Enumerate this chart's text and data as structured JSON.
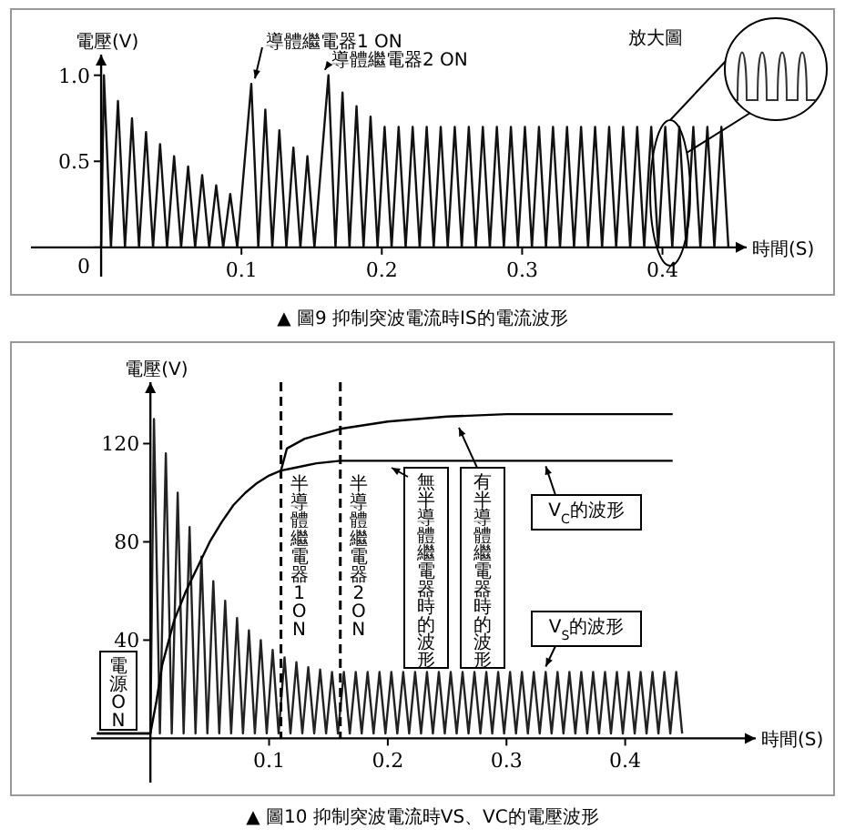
{
  "chart_data": [
    {
      "type": "line",
      "title": "▲ 圖9 抑制突波電流時IS的電流波形",
      "xlabel": "時間(S)",
      "ylabel": "電壓(V)",
      "xlim": [
        -0.05,
        0.46
      ],
      "ylim": [
        -0.17,
        1.12
      ],
      "xticks": [
        0.1,
        0.2,
        0.3,
        0.4
      ],
      "yticks": [
        0,
        0.5,
        {
          "value": 1,
          "label": "1.0"
        }
      ],
      "series": [
        {
          "color": "#111111",
          "x": [
            0,
            0.002,
            0.007,
            0.012,
            0.017,
            0.022,
            0.027,
            0.032,
            0.037,
            0.042,
            0.047,
            0.052,
            0.057,
            0.062,
            0.067,
            0.072,
            0.077,
            0.082,
            0.087,
            0.092,
            0.097,
            0.107,
            0.112,
            0.117,
            0.122,
            0.127,
            0.132,
            0.137,
            0.142,
            0.147,
            0.152,
            0.162,
            0.167,
            0.172,
            0.177,
            0.182,
            0.187,
            0.192,
            0.197,
            0.202,
            0.207,
            0.212,
            0.217,
            0.222,
            0.227,
            0.232,
            0.237,
            0.242,
            0.247,
            0.252,
            0.257,
            0.262,
            0.267,
            0.272,
            0.277,
            0.282,
            0.287,
            0.292,
            0.297,
            0.302,
            0.307,
            0.312,
            0.317,
            0.322,
            0.327,
            0.332,
            0.337,
            0.342,
            0.347,
            0.352,
            0.357,
            0.362,
            0.367,
            0.372,
            0.377,
            0.382,
            0.387,
            0.392,
            0.397,
            0.402,
            0.407,
            0.412,
            0.417,
            0.422,
            0.427,
            0.432,
            0.437,
            0.442,
            0.447
          ],
          "values": [
            0,
            1.0,
            0,
            0.85,
            0,
            0.75,
            0,
            0.67,
            0,
            0.6,
            0,
            0.53,
            0,
            0.47,
            0,
            0.42,
            0,
            0.36,
            0,
            0.31,
            0,
            0.95,
            0,
            0.8,
            0,
            0.68,
            0,
            0.58,
            0,
            0.53,
            0,
            1.0,
            0,
            0.9,
            0,
            0.82,
            0,
            0.76,
            0,
            0.7,
            0,
            0.7,
            0,
            0.7,
            0,
            0.7,
            0,
            0.7,
            0,
            0.7,
            0,
            0.7,
            0,
            0.7,
            0,
            0.7,
            0,
            0.7,
            0,
            0.7,
            0,
            0.7,
            0,
            0.7,
            0,
            0.7,
            0,
            0.7,
            0,
            0.7,
            0,
            0.7,
            0,
            0.7,
            0,
            0.7,
            0,
            0.7,
            0,
            0.7,
            0,
            0.7,
            0,
            0.7,
            0,
            0.7,
            0,
            0.7,
            0
          ]
        }
      ],
      "annotations": [
        {
          "text": "導體繼電器1 ON",
          "x": 0.107,
          "y": 0.95
        },
        {
          "text": "導體繼電器2 ON",
          "x": 0.162,
          "y": 1.0
        },
        "放大圖"
      ]
    },
    {
      "type": "line",
      "title": "▲ 圖10 抑制突波電流時VS、VC的電壓波形",
      "xlabel": "時間(S)",
      "ylabel": "電壓(V)",
      "xlim": [
        -0.05,
        0.51
      ],
      "ylim": [
        -18,
        145
      ],
      "xticks": [
        0.1,
        0.2,
        0.3,
        0.4
      ],
      "yticks": [
        40,
        80,
        120
      ],
      "series": [
        {
          "color": "#222222",
          "x": [
            -0.045,
            0,
            0.003,
            0.008,
            0.013,
            0.018,
            0.023,
            0.028,
            0.033,
            0.038,
            0.043,
            0.048,
            0.053,
            0.058,
            0.063,
            0.068,
            0.073,
            0.078,
            0.083,
            0.088,
            0.093,
            0.098,
            0.103,
            0.108,
            0.113,
            0.118,
            0.123,
            0.128,
            0.133,
            0.138,
            0.143,
            0.148,
            0.153,
            0.158,
            0.163,
            0.168,
            0.173,
            0.178,
            0.183,
            0.188,
            0.193,
            0.198,
            0.203,
            0.208,
            0.213,
            0.218,
            0.223,
            0.228,
            0.233,
            0.238,
            0.243,
            0.248,
            0.253,
            0.258,
            0.263,
            0.268,
            0.273,
            0.278,
            0.283,
            0.288,
            0.293,
            0.298,
            0.303,
            0.308,
            0.313,
            0.318,
            0.323,
            0.328,
            0.333,
            0.338,
            0.343,
            0.348,
            0.353,
            0.358,
            0.363,
            0.368,
            0.373,
            0.378,
            0.383,
            0.388,
            0.393,
            0.398,
            0.403,
            0.408,
            0.413,
            0.418,
            0.423,
            0.428,
            0.433,
            0.438,
            0.443,
            0.448
          ],
          "values": [
            2,
            2,
            130,
            2,
            116,
            2,
            100,
            2,
            86,
            2,
            74,
            2,
            64,
            2,
            56,
            2,
            49,
            2,
            44,
            2,
            40,
            2,
            36,
            2,
            33,
            2,
            31,
            2,
            29,
            2,
            28,
            2,
            27,
            2,
            27,
            2,
            27,
            2,
            27,
            2,
            27,
            2,
            27,
            2,
            27,
            2,
            27,
            2,
            27,
            2,
            27,
            2,
            27,
            2,
            27,
            2,
            27,
            2,
            27,
            2,
            27,
            2,
            27,
            2,
            27,
            2,
            27,
            2,
            27,
            2,
            27,
            2,
            27,
            2,
            27,
            2,
            27,
            2,
            27,
            2,
            27,
            2,
            27,
            2,
            27,
            2,
            27,
            2,
            27,
            2,
            27,
            2
          ]
        },
        {
          "color": "#000000",
          "x": [
            -0.045,
            0,
            0.005,
            0.01,
            0.02,
            0.03,
            0.04,
            0.05,
            0.06,
            0.07,
            0.08,
            0.09,
            0.1,
            0.11,
            0.12,
            0.14,
            0.16,
            0.2,
            0.3,
            0.44
          ],
          "values": [
            2,
            2,
            15,
            30,
            48,
            60,
            70,
            80,
            88,
            95,
            100,
            104,
            107,
            109,
            110,
            112,
            113,
            113,
            113,
            113
          ]
        },
        {
          "color": "#000000",
          "x": [
            0.11,
            0.115,
            0.13,
            0.16,
            0.2,
            0.25,
            0.3,
            0.44
          ],
          "values": [
            109,
            118,
            122,
            126,
            129,
            131,
            132,
            132
          ]
        }
      ],
      "ref_lines": [
        {
          "axis": "x",
          "value": 0.11,
          "label": "半導體繼電器1ON",
          "line_style": "dashed"
        },
        {
          "axis": "x",
          "value": 0.16,
          "label": "半導體繼電器2ON",
          "line_style": "dashed"
        }
      ],
      "annotations": [
        "電源ON",
        "無半導體繼電器時的波形",
        "有半導體繼電器時的波形",
        {
          "text": "V$_{C}$的波形",
          "x": 0.33,
          "y": 113
        },
        {
          "text": "V$_{S}$的波形",
          "x": 0.33,
          "y": 27
        }
      ]
    }
  ]
}
